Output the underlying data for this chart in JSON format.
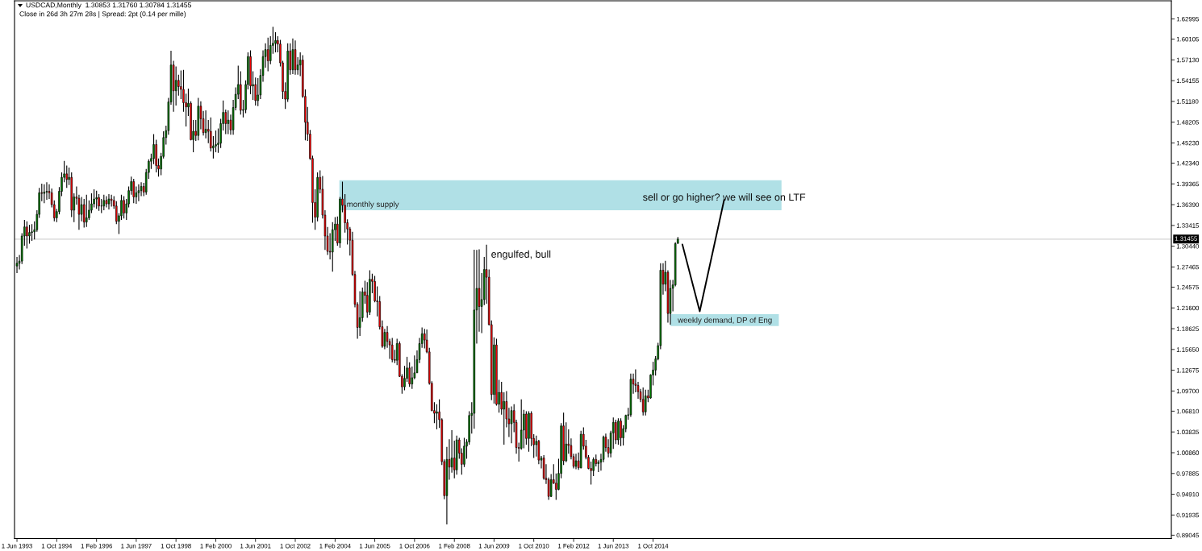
{
  "chart_data": {
    "type": "candlestick",
    "title": "USDCAD,Monthly  1.30853 1.31760 1.30784 1.31455",
    "subtitle": "Close in 26d 3h 27m 28s | Spread: 2pt (0.14 per mille)",
    "x": [
      "1993-06",
      "1993-07",
      "1993-08",
      "1993-09",
      "1993-10",
      "1993-11",
      "1993-12",
      "1994-01",
      "1994-02",
      "1994-03",
      "1994-04",
      "1994-05",
      "1994-06",
      "1994-07",
      "1994-08",
      "1994-09",
      "1994-10",
      "1994-11",
      "1994-12",
      "1995-01",
      "1995-02",
      "1995-03",
      "1995-04",
      "1995-05",
      "1995-06",
      "1995-07",
      "1995-08",
      "1995-09",
      "1995-10",
      "1995-11",
      "1995-12",
      "1996-01",
      "1996-02",
      "1996-03",
      "1996-04",
      "1996-05",
      "1996-06",
      "1996-07",
      "1996-08",
      "1996-09",
      "1996-10",
      "1996-11",
      "1996-12",
      "1997-01",
      "1997-02",
      "1997-03",
      "1997-04",
      "1997-05",
      "1997-06",
      "1997-07",
      "1997-08",
      "1997-09",
      "1997-10",
      "1997-11",
      "1997-12",
      "1998-01",
      "1998-02",
      "1998-03",
      "1998-04",
      "1998-05",
      "1998-06",
      "1998-07",
      "1998-08",
      "1998-09",
      "1998-10",
      "1998-11",
      "1998-12",
      "1999-01",
      "1999-02",
      "1999-03",
      "1999-04",
      "1999-05",
      "1999-06",
      "1999-07",
      "1999-08",
      "1999-09",
      "1999-10",
      "1999-11",
      "1999-12",
      "2000-01",
      "2000-02",
      "2000-03",
      "2000-04",
      "2000-05",
      "2000-06",
      "2000-07",
      "2000-08",
      "2000-09",
      "2000-10",
      "2000-11",
      "2000-12",
      "2001-01",
      "2001-02",
      "2001-03",
      "2001-04",
      "2001-05",
      "2001-06",
      "2001-07",
      "2001-08",
      "2001-09",
      "2001-10",
      "2001-11",
      "2001-12",
      "2002-01",
      "2002-02",
      "2002-03",
      "2002-04",
      "2002-05",
      "2002-06",
      "2002-07",
      "2002-08",
      "2002-09",
      "2002-10",
      "2002-11",
      "2002-12",
      "2003-01",
      "2003-02",
      "2003-03",
      "2003-04",
      "2003-05",
      "2003-06",
      "2003-07",
      "2003-08",
      "2003-09",
      "2003-10",
      "2003-11",
      "2003-12",
      "2004-01",
      "2004-02",
      "2004-03",
      "2004-04",
      "2004-05",
      "2004-06",
      "2004-07",
      "2004-08",
      "2004-09",
      "2004-10",
      "2004-11",
      "2004-12",
      "2005-01",
      "2005-02",
      "2005-03",
      "2005-04",
      "2005-05",
      "2005-06",
      "2005-07",
      "2005-08",
      "2005-09",
      "2005-10",
      "2005-11",
      "2005-12",
      "2006-01",
      "2006-02",
      "2006-03",
      "2006-04",
      "2006-05",
      "2006-06",
      "2006-07",
      "2006-08",
      "2006-09",
      "2006-10",
      "2006-11",
      "2006-12",
      "2007-01",
      "2007-02",
      "2007-03",
      "2007-04",
      "2007-05",
      "2007-06",
      "2007-07",
      "2007-08",
      "2007-09",
      "2007-10",
      "2007-11",
      "2007-12",
      "2008-01",
      "2008-02",
      "2008-03",
      "2008-04",
      "2008-05",
      "2008-06",
      "2008-07",
      "2008-08",
      "2008-09",
      "2008-10",
      "2008-11",
      "2008-12",
      "2009-01",
      "2009-02",
      "2009-03",
      "2009-04",
      "2009-05",
      "2009-06",
      "2009-07",
      "2009-08",
      "2009-09",
      "2009-10",
      "2009-11",
      "2009-12",
      "2010-01",
      "2010-02",
      "2010-03",
      "2010-04",
      "2010-05",
      "2010-06",
      "2010-07",
      "2010-08",
      "2010-09",
      "2010-10",
      "2010-11",
      "2010-12",
      "2011-01",
      "2011-02",
      "2011-03",
      "2011-04",
      "2011-05",
      "2011-06",
      "2011-07",
      "2011-08",
      "2011-09",
      "2011-10",
      "2011-11",
      "2011-12",
      "2012-01",
      "2012-02",
      "2012-03",
      "2012-04",
      "2012-05",
      "2012-06",
      "2012-07",
      "2012-08",
      "2012-09",
      "2012-10",
      "2012-11",
      "2012-12",
      "2013-01",
      "2013-02",
      "2013-03",
      "2013-04",
      "2013-05",
      "2013-06",
      "2013-07",
      "2013-08",
      "2013-09",
      "2013-10",
      "2013-11",
      "2013-12",
      "2014-01",
      "2014-02",
      "2014-03",
      "2014-04",
      "2014-05",
      "2014-06",
      "2014-07",
      "2014-08",
      "2014-09",
      "2014-10",
      "2014-11",
      "2014-12",
      "2015-01",
      "2015-02",
      "2015-03",
      "2015-04",
      "2015-05",
      "2015-06",
      "2015-07",
      "2015-08"
    ],
    "ohlc": [
      [
        1.276,
        1.289,
        1.266,
        1.28
      ],
      [
        1.28,
        1.292,
        1.271,
        1.283
      ],
      [
        1.283,
        1.323,
        1.279,
        1.319
      ],
      [
        1.319,
        1.342,
        1.305,
        1.332
      ],
      [
        1.332,
        1.34,
        1.301,
        1.319
      ],
      [
        1.319,
        1.335,
        1.308,
        1.324
      ],
      [
        1.324,
        1.336,
        1.312,
        1.325
      ],
      [
        1.325,
        1.34,
        1.314,
        1.328
      ],
      [
        1.328,
        1.356,
        1.325,
        1.35
      ],
      [
        1.35,
        1.388,
        1.345,
        1.381
      ],
      [
        1.381,
        1.394,
        1.369,
        1.38
      ],
      [
        1.38,
        1.393,
        1.366,
        1.382
      ],
      [
        1.382,
        1.396,
        1.371,
        1.383
      ],
      [
        1.383,
        1.393,
        1.372,
        1.381
      ],
      [
        1.381,
        1.387,
        1.36,
        1.364
      ],
      [
        1.364,
        1.37,
        1.34,
        1.345
      ],
      [
        1.345,
        1.358,
        1.339,
        1.354
      ],
      [
        1.354,
        1.389,
        1.35,
        1.383
      ],
      [
        1.383,
        1.41,
        1.376,
        1.403
      ],
      [
        1.403,
        1.4267,
        1.396,
        1.408
      ],
      [
        1.408,
        1.42,
        1.388,
        1.4
      ],
      [
        1.4,
        1.417,
        1.392,
        1.403
      ],
      [
        1.403,
        1.41,
        1.346,
        1.356
      ],
      [
        1.356,
        1.38,
        1.339,
        1.375
      ],
      [
        1.375,
        1.39,
        1.364,
        1.373
      ],
      [
        1.373,
        1.378,
        1.328,
        1.35
      ],
      [
        1.35,
        1.375,
        1.34,
        1.364
      ],
      [
        1.364,
        1.372,
        1.331,
        1.339
      ],
      [
        1.339,
        1.378,
        1.332,
        1.345
      ],
      [
        1.345,
        1.37,
        1.342,
        1.356
      ],
      [
        1.356,
        1.38,
        1.352,
        1.365
      ],
      [
        1.365,
        1.386,
        1.36,
        1.372
      ],
      [
        1.372,
        1.384,
        1.358,
        1.374
      ],
      [
        1.374,
        1.379,
        1.355,
        1.362
      ],
      [
        1.362,
        1.372,
        1.352,
        1.362
      ],
      [
        1.362,
        1.378,
        1.356,
        1.37
      ],
      [
        1.37,
        1.376,
        1.36,
        1.365
      ],
      [
        1.365,
        1.379,
        1.357,
        1.372
      ],
      [
        1.372,
        1.378,
        1.361,
        1.37
      ],
      [
        1.37,
        1.376,
        1.358,
        1.362
      ],
      [
        1.362,
        1.369,
        1.336,
        1.34
      ],
      [
        1.34,
        1.352,
        1.322,
        1.348
      ],
      [
        1.348,
        1.378,
        1.342,
        1.37
      ],
      [
        1.37,
        1.376,
        1.344,
        1.352
      ],
      [
        1.352,
        1.372,
        1.342,
        1.365
      ],
      [
        1.365,
        1.39,
        1.36,
        1.384
      ],
      [
        1.384,
        1.404,
        1.378,
        1.397
      ],
      [
        1.397,
        1.401,
        1.366,
        1.375
      ],
      [
        1.375,
        1.39,
        1.365,
        1.381
      ],
      [
        1.381,
        1.393,
        1.369,
        1.384
      ],
      [
        1.384,
        1.396,
        1.376,
        1.39
      ],
      [
        1.39,
        1.395,
        1.376,
        1.382
      ],
      [
        1.382,
        1.415,
        1.378,
        1.41
      ],
      [
        1.41,
        1.429,
        1.401,
        1.426
      ],
      [
        1.426,
        1.437,
        1.415,
        1.43
      ],
      [
        1.43,
        1.465,
        1.422,
        1.45
      ],
      [
        1.45,
        1.457,
        1.41,
        1.42
      ],
      [
        1.42,
        1.43,
        1.404,
        1.415
      ],
      [
        1.415,
        1.438,
        1.406,
        1.433
      ],
      [
        1.433,
        1.469,
        1.43,
        1.46
      ],
      [
        1.46,
        1.477,
        1.45,
        1.47
      ],
      [
        1.47,
        1.517,
        1.464,
        1.511
      ],
      [
        1.511,
        1.5844,
        1.507,
        1.564
      ],
      [
        1.564,
        1.57,
        1.497,
        1.527
      ],
      [
        1.527,
        1.562,
        1.506,
        1.542
      ],
      [
        1.542,
        1.55,
        1.52,
        1.533
      ],
      [
        1.533,
        1.556,
        1.515,
        1.529
      ],
      [
        1.529,
        1.557,
        1.497,
        1.51
      ],
      [
        1.51,
        1.523,
        1.476,
        1.504
      ],
      [
        1.504,
        1.53,
        1.491,
        1.509
      ],
      [
        1.509,
        1.512,
        1.456,
        1.457
      ],
      [
        1.457,
        1.485,
        1.439,
        1.469
      ],
      [
        1.469,
        1.485,
        1.455,
        1.463
      ],
      [
        1.463,
        1.517,
        1.456,
        1.505
      ],
      [
        1.505,
        1.512,
        1.472,
        1.487
      ],
      [
        1.487,
        1.498,
        1.463,
        1.467
      ],
      [
        1.467,
        1.499,
        1.459,
        1.472
      ],
      [
        1.472,
        1.485,
        1.452,
        1.469
      ],
      [
        1.469,
        1.489,
        1.44,
        1.445
      ],
      [
        1.445,
        1.462,
        1.43,
        1.448
      ],
      [
        1.448,
        1.47,
        1.439,
        1.45
      ],
      [
        1.45,
        1.473,
        1.438,
        1.452
      ],
      [
        1.452,
        1.487,
        1.445,
        1.48
      ],
      [
        1.48,
        1.513,
        1.47,
        1.496
      ],
      [
        1.496,
        1.5,
        1.465,
        1.48
      ],
      [
        1.48,
        1.499,
        1.465,
        1.485
      ],
      [
        1.485,
        1.493,
        1.464,
        1.471
      ],
      [
        1.471,
        1.514,
        1.464,
        1.503
      ],
      [
        1.503,
        1.532,
        1.499,
        1.522
      ],
      [
        1.522,
        1.563,
        1.515,
        1.536
      ],
      [
        1.536,
        1.555,
        1.493,
        1.499
      ],
      [
        1.499,
        1.514,
        1.489,
        1.5
      ],
      [
        1.5,
        1.542,
        1.495,
        1.536
      ],
      [
        1.536,
        1.582,
        1.529,
        1.576
      ],
      [
        1.576,
        1.585,
        1.522,
        1.534
      ],
      [
        1.534,
        1.555,
        1.514,
        1.536
      ],
      [
        1.536,
        1.546,
        1.506,
        1.513
      ],
      [
        1.513,
        1.545,
        1.505,
        1.521
      ],
      [
        1.521,
        1.558,
        1.515,
        1.549
      ],
      [
        1.549,
        1.585,
        1.54,
        1.576
      ],
      [
        1.576,
        1.595,
        1.56,
        1.586
      ],
      [
        1.586,
        1.603,
        1.555,
        1.57
      ],
      [
        1.57,
        1.605,
        1.565,
        1.592
      ],
      [
        1.592,
        1.6186,
        1.58,
        1.595
      ],
      [
        1.595,
        1.611,
        1.582,
        1.599
      ],
      [
        1.599,
        1.605,
        1.582,
        1.594
      ],
      [
        1.594,
        1.6,
        1.562,
        1.567
      ],
      [
        1.567,
        1.57,
        1.515,
        1.526
      ],
      [
        1.526,
        1.539,
        1.501,
        1.515
      ],
      [
        1.515,
        1.595,
        1.511,
        1.584
      ],
      [
        1.584,
        1.595,
        1.55,
        1.557
      ],
      [
        1.557,
        1.602,
        1.551,
        1.586
      ],
      [
        1.586,
        1.599,
        1.55,
        1.557
      ],
      [
        1.557,
        1.575,
        1.55,
        1.564
      ],
      [
        1.564,
        1.582,
        1.548,
        1.571
      ],
      [
        1.571,
        1.578,
        1.517,
        1.519
      ],
      [
        1.519,
        1.529,
        1.456,
        1.482
      ],
      [
        1.482,
        1.504,
        1.455,
        1.465
      ],
      [
        1.465,
        1.471,
        1.428,
        1.43
      ],
      [
        1.43,
        1.434,
        1.338,
        1.367
      ],
      [
        1.367,
        1.386,
        1.328,
        1.346
      ],
      [
        1.346,
        1.41,
        1.34,
        1.403
      ],
      [
        1.403,
        1.413,
        1.38,
        1.386
      ],
      [
        1.386,
        1.405,
        1.344,
        1.349
      ],
      [
        1.349,
        1.356,
        1.299,
        1.319
      ],
      [
        1.319,
        1.332,
        1.292,
        1.297
      ],
      [
        1.297,
        1.323,
        1.2855,
        1.296
      ],
      [
        1.296,
        1.339,
        1.268,
        1.328
      ],
      [
        1.328,
        1.346,
        1.312,
        1.336
      ],
      [
        1.336,
        1.347,
        1.305,
        1.309
      ],
      [
        1.309,
        1.375,
        1.302,
        1.372
      ],
      [
        1.372,
        1.397,
        1.353,
        1.363
      ],
      [
        1.363,
        1.379,
        1.324,
        1.338
      ],
      [
        1.338,
        1.343,
        1.307,
        1.329
      ],
      [
        1.329,
        1.332,
        1.291,
        1.313
      ],
      [
        1.313,
        1.325,
        1.262,
        1.264
      ],
      [
        1.264,
        1.269,
        1.217,
        1.221
      ],
      [
        1.221,
        1.224,
        1.172,
        1.188
      ],
      [
        1.188,
        1.24,
        1.176,
        1.202
      ],
      [
        1.202,
        1.245,
        1.196,
        1.239
      ],
      [
        1.239,
        1.255,
        1.222,
        1.234
      ],
      [
        1.234,
        1.253,
        1.202,
        1.21
      ],
      [
        1.21,
        1.27,
        1.206,
        1.257
      ],
      [
        1.257,
        1.265,
        1.237,
        1.254
      ],
      [
        1.254,
        1.262,
        1.224,
        1.226
      ],
      [
        1.226,
        1.247,
        1.204,
        1.225
      ],
      [
        1.225,
        1.233,
        1.185,
        1.189
      ],
      [
        1.189,
        1.198,
        1.159,
        1.161
      ],
      [
        1.161,
        1.186,
        1.157,
        1.181
      ],
      [
        1.181,
        1.19,
        1.159,
        1.168
      ],
      [
        1.168,
        1.172,
        1.143,
        1.163
      ],
      [
        1.163,
        1.173,
        1.138,
        1.142
      ],
      [
        1.142,
        1.156,
        1.137,
        1.141
      ],
      [
        1.141,
        1.172,
        1.134,
        1.165
      ],
      [
        1.165,
        1.168,
        1.117,
        1.118
      ],
      [
        1.118,
        1.121,
        1.093,
        1.103
      ],
      [
        1.103,
        1.133,
        1.098,
        1.115
      ],
      [
        1.115,
        1.146,
        1.11,
        1.13
      ],
      [
        1.13,
        1.138,
        1.103,
        1.107
      ],
      [
        1.107,
        1.132,
        1.1,
        1.116
      ],
      [
        1.116,
        1.148,
        1.114,
        1.123
      ],
      [
        1.123,
        1.155,
        1.123,
        1.142
      ],
      [
        1.142,
        1.173,
        1.137,
        1.165
      ],
      [
        1.165,
        1.188,
        1.159,
        1.179
      ],
      [
        1.179,
        1.186,
        1.158,
        1.17
      ],
      [
        1.17,
        1.185,
        1.151,
        1.153
      ],
      [
        1.153,
        1.159,
        1.106,
        1.108
      ],
      [
        1.108,
        1.111,
        1.068,
        1.069
      ],
      [
        1.069,
        1.081,
        1.051,
        1.065
      ],
      [
        1.065,
        1.078,
        1.042,
        1.067
      ],
      [
        1.067,
        1.085,
        1.044,
        1.056
      ],
      [
        1.056,
        1.058,
        0.991,
        0.996
      ],
      [
        0.996,
        0.999,
        0.942,
        0.947
      ],
      [
        0.947,
        1.017,
        0.9058,
        0.999
      ],
      [
        0.999,
        1.028,
        0.97,
        0.988
      ],
      [
        0.988,
        1.041,
        0.98,
        1.001
      ],
      [
        1.001,
        1.026,
        0.972,
        0.984
      ],
      [
        0.984,
        1.033,
        0.977,
        1.027
      ],
      [
        1.027,
        1.03,
        1.0,
        1.008
      ],
      [
        1.008,
        1.015,
        0.977,
        0.992
      ],
      [
        0.992,
        1.03,
        0.988,
        1.018
      ],
      [
        1.018,
        1.028,
        1.0,
        1.024
      ],
      [
        1.024,
        1.068,
        1.02,
        1.062
      ],
      [
        1.062,
        1.081,
        1.036,
        1.065
      ],
      [
        1.065,
        1.2995,
        1.043,
        1.213
      ],
      [
        1.213,
        1.299,
        1.165,
        1.244
      ],
      [
        1.244,
        1.3,
        1.182,
        1.218
      ],
      [
        1.218,
        1.266,
        1.18,
        1.228
      ],
      [
        1.228,
        1.289,
        1.22,
        1.271
      ],
      [
        1.271,
        1.3065,
        1.222,
        1.26
      ],
      [
        1.26,
        1.271,
        1.191,
        1.192
      ],
      [
        1.192,
        1.198,
        1.084,
        1.092
      ],
      [
        1.092,
        1.174,
        1.079,
        1.163
      ],
      [
        1.163,
        1.172,
        1.076,
        1.078
      ],
      [
        1.078,
        1.113,
        1.066,
        1.095
      ],
      [
        1.095,
        1.11,
        1.063,
        1.071
      ],
      [
        1.071,
        1.095,
        1.02,
        1.082
      ],
      [
        1.082,
        1.097,
        1.045,
        1.057
      ],
      [
        1.057,
        1.073,
        1.031,
        1.05
      ],
      [
        1.05,
        1.075,
        1.022,
        1.069
      ],
      [
        1.069,
        1.078,
        1.038,
        1.052
      ],
      [
        1.052,
        1.056,
        1.007,
        1.016
      ],
      [
        1.016,
        1.023,
        0.996,
        1.015
      ],
      [
        1.015,
        1.085,
        1.013,
        1.041
      ],
      [
        1.041,
        1.07,
        1.015,
        1.064
      ],
      [
        1.064,
        1.068,
        1.02,
        1.029
      ],
      [
        1.029,
        1.068,
        1.01,
        1.065
      ],
      [
        1.065,
        1.068,
        1.018,
        1.029
      ],
      [
        1.029,
        1.035,
        1.001,
        1.02
      ],
      [
        1.02,
        1.033,
        1.003,
        1.025
      ],
      [
        1.025,
        1.027,
        0.992,
        0.998
      ],
      [
        0.998,
        1.004,
        0.986,
        1.001
      ],
      [
        1.001,
        1.005,
        0.97,
        0.972
      ],
      [
        0.972,
        0.992,
        0.964,
        0.97
      ],
      [
        0.97,
        0.973,
        0.941,
        0.946
      ],
      [
        0.946,
        0.978,
        0.945,
        0.97
      ],
      [
        0.97,
        0.992,
        0.964,
        0.965
      ],
      [
        0.965,
        0.979,
        0.941,
        0.956
      ],
      [
        0.956,
        1.0,
        0.955,
        0.979
      ],
      [
        0.979,
        1.051,
        0.972,
        1.047
      ],
      [
        1.047,
        1.066,
        0.991,
        0.997
      ],
      [
        0.997,
        1.052,
        0.995,
        1.021
      ],
      [
        1.021,
        1.042,
        1.007,
        1.019
      ],
      [
        1.019,
        1.029,
        0.999,
        1.003
      ],
      [
        1.003,
        1.007,
        0.986,
        0.989
      ],
      [
        0.989,
        1.007,
        0.985,
        0.997
      ],
      [
        0.997,
        1.009,
        0.984,
        0.987
      ],
      [
        0.987,
        1.04,
        0.986,
        1.035
      ],
      [
        1.035,
        1.045,
        1.013,
        1.018
      ],
      [
        1.018,
        1.027,
        0.999,
        1.002
      ],
      [
        1.002,
        1.005,
        0.985,
        0.986
      ],
      [
        0.986,
        0.996,
        0.963,
        0.983
      ],
      [
        0.983,
        1.002,
        0.975,
        0.999
      ],
      [
        0.999,
        1.006,
        0.989,
        0.993
      ],
      [
        0.993,
        0.998,
        0.981,
        0.995
      ],
      [
        0.995,
        1.007,
        0.983,
        0.999
      ],
      [
        0.999,
        1.033,
        0.995,
        1.031
      ],
      [
        1.031,
        1.036,
        1.01,
        1.016
      ],
      [
        1.016,
        1.028,
        1.002,
        1.008
      ],
      [
        1.008,
        1.04,
        1.002,
        1.037
      ],
      [
        1.037,
        1.059,
        1.014,
        1.052
      ],
      [
        1.052,
        1.056,
        1.021,
        1.027
      ],
      [
        1.027,
        1.058,
        1.02,
        1.054
      ],
      [
        1.054,
        1.058,
        1.018,
        1.03
      ],
      [
        1.03,
        1.048,
        1.019,
        1.043
      ],
      [
        1.043,
        1.063,
        1.038,
        1.062
      ],
      [
        1.062,
        1.073,
        1.056,
        1.063
      ],
      [
        1.063,
        1.122,
        1.06,
        1.114
      ],
      [
        1.114,
        1.122,
        1.093,
        1.107
      ],
      [
        1.107,
        1.128,
        1.095,
        1.105
      ],
      [
        1.105,
        1.11,
        1.086,
        1.096
      ],
      [
        1.096,
        1.1,
        1.081,
        1.085
      ],
      [
        1.085,
        1.102,
        1.062,
        1.067
      ],
      [
        1.067,
        1.099,
        1.062,
        1.09
      ],
      [
        1.09,
        1.099,
        1.081,
        1.087
      ],
      [
        1.087,
        1.121,
        1.086,
        1.12
      ],
      [
        1.12,
        1.139,
        1.105,
        1.127
      ],
      [
        1.127,
        1.147,
        1.119,
        1.143
      ],
      [
        1.143,
        1.166,
        1.141,
        1.162
      ],
      [
        1.162,
        1.28,
        1.157,
        1.27
      ],
      [
        1.27,
        1.28,
        1.235,
        1.25
      ],
      [
        1.25,
        1.2835,
        1.24,
        1.267
      ],
      [
        1.267,
        1.27,
        1.195,
        1.208
      ],
      [
        1.208,
        1.256,
        1.192,
        1.244
      ],
      [
        1.244,
        1.256,
        1.211,
        1.249
      ],
      [
        1.249,
        1.31,
        1.247,
        1.308
      ],
      [
        1.30853,
        1.3176,
        1.30784,
        1.31455
      ]
    ],
    "series": [
      {
        "type": "line",
        "x": [
          "2015-09-25",
          "2016-04-25",
          "2017-02-18"
        ],
        "values": [
          1.307,
          1.211,
          1.371
        ],
        "color": "#000000"
      }
    ],
    "bands": [
      {
        "axis": "y",
        "from": 1.356,
        "to": 1.399,
        "label": "monthly supply",
        "color": "#b0e0e6"
      },
      {
        "axis": "y",
        "from": 1.19,
        "to": 1.207,
        "label": "weekly demand, DP of Eng",
        "color": "#b0e0e6"
      }
    ],
    "ref_lines": [
      {
        "axis": "y",
        "value": 1.31455,
        "label": "1.31455",
        "color": "#e0e0e0"
      }
    ],
    "annotations": [
      {
        "text": "engulfed, bull",
        "x": "2009-03",
        "y": 1.3065
      },
      {
        "text": "sell or go higher? we will see on LTF",
        "x": "2017-02-18",
        "y": 1.371
      }
    ],
    "xlim": [
      "1993-05-02",
      "2032-02-18"
    ],
    "xticks": [
      {
        "value": "1993-06",
        "label": "1 Jun 1993"
      },
      {
        "value": "1994-10",
        "label": "1 Oct 1994"
      },
      {
        "value": "1996-02",
        "label": "1 Feb 1996"
      },
      {
        "value": "1997-06",
        "label": "1 Jun 1997"
      },
      {
        "value": "1998-10",
        "label": "1 Oct 1998"
      },
      {
        "value": "2000-02",
        "label": "1 Feb 2000"
      },
      {
        "value": "2001-06",
        "label": "1 Jun 2001"
      },
      {
        "value": "2002-10",
        "label": "1 Oct 2002"
      },
      {
        "value": "2004-02",
        "label": "1 Feb 2004"
      },
      {
        "value": "2005-06",
        "label": "1 Jun 2005"
      },
      {
        "value": "2006-10",
        "label": "1 Oct 2006"
      },
      {
        "value": "2008-02",
        "label": "1 Feb 2008"
      },
      {
        "value": "2009-06",
        "label": "1 Jun 2009"
      },
      {
        "value": "2010-10",
        "label": "1 Oct 2010"
      },
      {
        "value": "2012-02",
        "label": "1 Feb 2012"
      },
      {
        "value": "2013-06",
        "label": "1 Jun 2013"
      },
      {
        "value": "2014-10",
        "label": "1 Oct 2014"
      }
    ],
    "ylim": [
      0.8857,
      1.6559
    ],
    "yticks": [
      1.62995,
      1.60105,
      {
        "value": 1.5713,
        "label": "1.57130"
      },
      1.54155,
      {
        "value": 1.5118,
        "label": "1.51180"
      },
      1.48205,
      {
        "value": 1.4523,
        "label": "1.45230"
      },
      {
        "value": 1.4234,
        "label": "1.42340"
      },
      1.39365,
      {
        "value": 1.3639,
        "label": "1.36390"
      },
      1.33415,
      {
        "value": 1.3044,
        "label": "1.30440"
      },
      1.27465,
      1.24575,
      {
        "value": 1.216,
        "label": "1.21600"
      },
      1.18625,
      {
        "value": 1.1565,
        "label": "1.15650"
      },
      1.12675,
      {
        "value": 1.097,
        "label": "1.09700"
      },
      {
        "value": 1.0681,
        "label": "1.06810"
      },
      1.03835,
      {
        "value": 1.0086,
        "label": "1.00860"
      },
      0.97885,
      {
        "value": 0.9491,
        "label": "0.94910"
      },
      0.91935,
      0.89045
    ]
  }
}
